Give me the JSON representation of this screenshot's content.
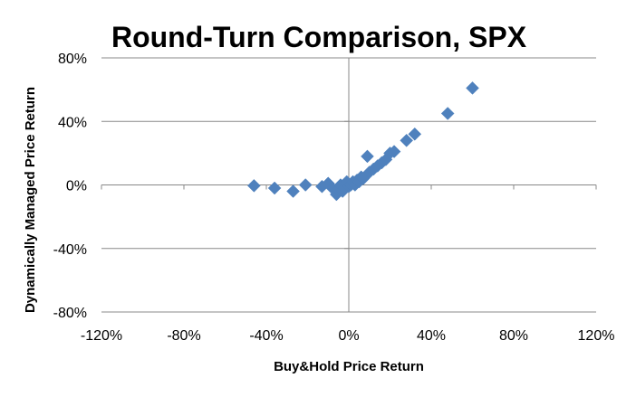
{
  "chart_data": {
    "type": "scatter",
    "title": "Round-Turn Comparison, SPX",
    "xlabel": "Buy&Hold Price Return",
    "ylabel": "Dynamically Managed Price Return",
    "xlim": [
      -1.2,
      1.2
    ],
    "ylim": [
      -0.8,
      0.8
    ],
    "x_ticks": [
      -1.2,
      -0.8,
      -0.4,
      0,
      0.4,
      0.8,
      1.2
    ],
    "x_tick_labels": [
      "-120%",
      "-80%",
      "-40%",
      "0%",
      "40%",
      "80%",
      "120%"
    ],
    "y_ticks": [
      -0.8,
      -0.4,
      0,
      0.4,
      0.8
    ],
    "y_tick_labels": [
      "-80%",
      "-40%",
      "0%",
      "40%",
      "80%"
    ],
    "grid": "horizontal",
    "legend": "none",
    "marker_color": "#4f81bd",
    "marker": "diamond",
    "points": [
      {
        "x": -0.46,
        "y": -0.005
      },
      {
        "x": -0.36,
        "y": -0.02
      },
      {
        "x": -0.27,
        "y": -0.04
      },
      {
        "x": -0.21,
        "y": 0.0
      },
      {
        "x": -0.13,
        "y": -0.01
      },
      {
        "x": -0.1,
        "y": 0.01
      },
      {
        "x": -0.08,
        "y": -0.02
      },
      {
        "x": -0.06,
        "y": -0.06
      },
      {
        "x": -0.05,
        "y": -0.03
      },
      {
        "x": -0.04,
        "y": 0.0
      },
      {
        "x": -0.03,
        "y": -0.04
      },
      {
        "x": -0.02,
        "y": -0.02
      },
      {
        "x": -0.01,
        "y": 0.02
      },
      {
        "x": 0.0,
        "y": -0.01
      },
      {
        "x": 0.01,
        "y": 0.0
      },
      {
        "x": 0.02,
        "y": 0.02
      },
      {
        "x": 0.03,
        "y": 0.0
      },
      {
        "x": 0.04,
        "y": 0.03
      },
      {
        "x": 0.05,
        "y": 0.02
      },
      {
        "x": 0.06,
        "y": 0.05
      },
      {
        "x": 0.07,
        "y": 0.04
      },
      {
        "x": 0.09,
        "y": 0.18
      },
      {
        "x": 0.1,
        "y": 0.08
      },
      {
        "x": 0.12,
        "y": 0.1
      },
      {
        "x": 0.14,
        "y": 0.12
      },
      {
        "x": 0.16,
        "y": 0.14
      },
      {
        "x": 0.18,
        "y": 0.16
      },
      {
        "x": 0.2,
        "y": 0.2
      },
      {
        "x": 0.22,
        "y": 0.21
      },
      {
        "x": 0.28,
        "y": 0.28
      },
      {
        "x": 0.32,
        "y": 0.32
      },
      {
        "x": 0.48,
        "y": 0.45
      },
      {
        "x": 0.6,
        "y": 0.61
      }
    ]
  }
}
